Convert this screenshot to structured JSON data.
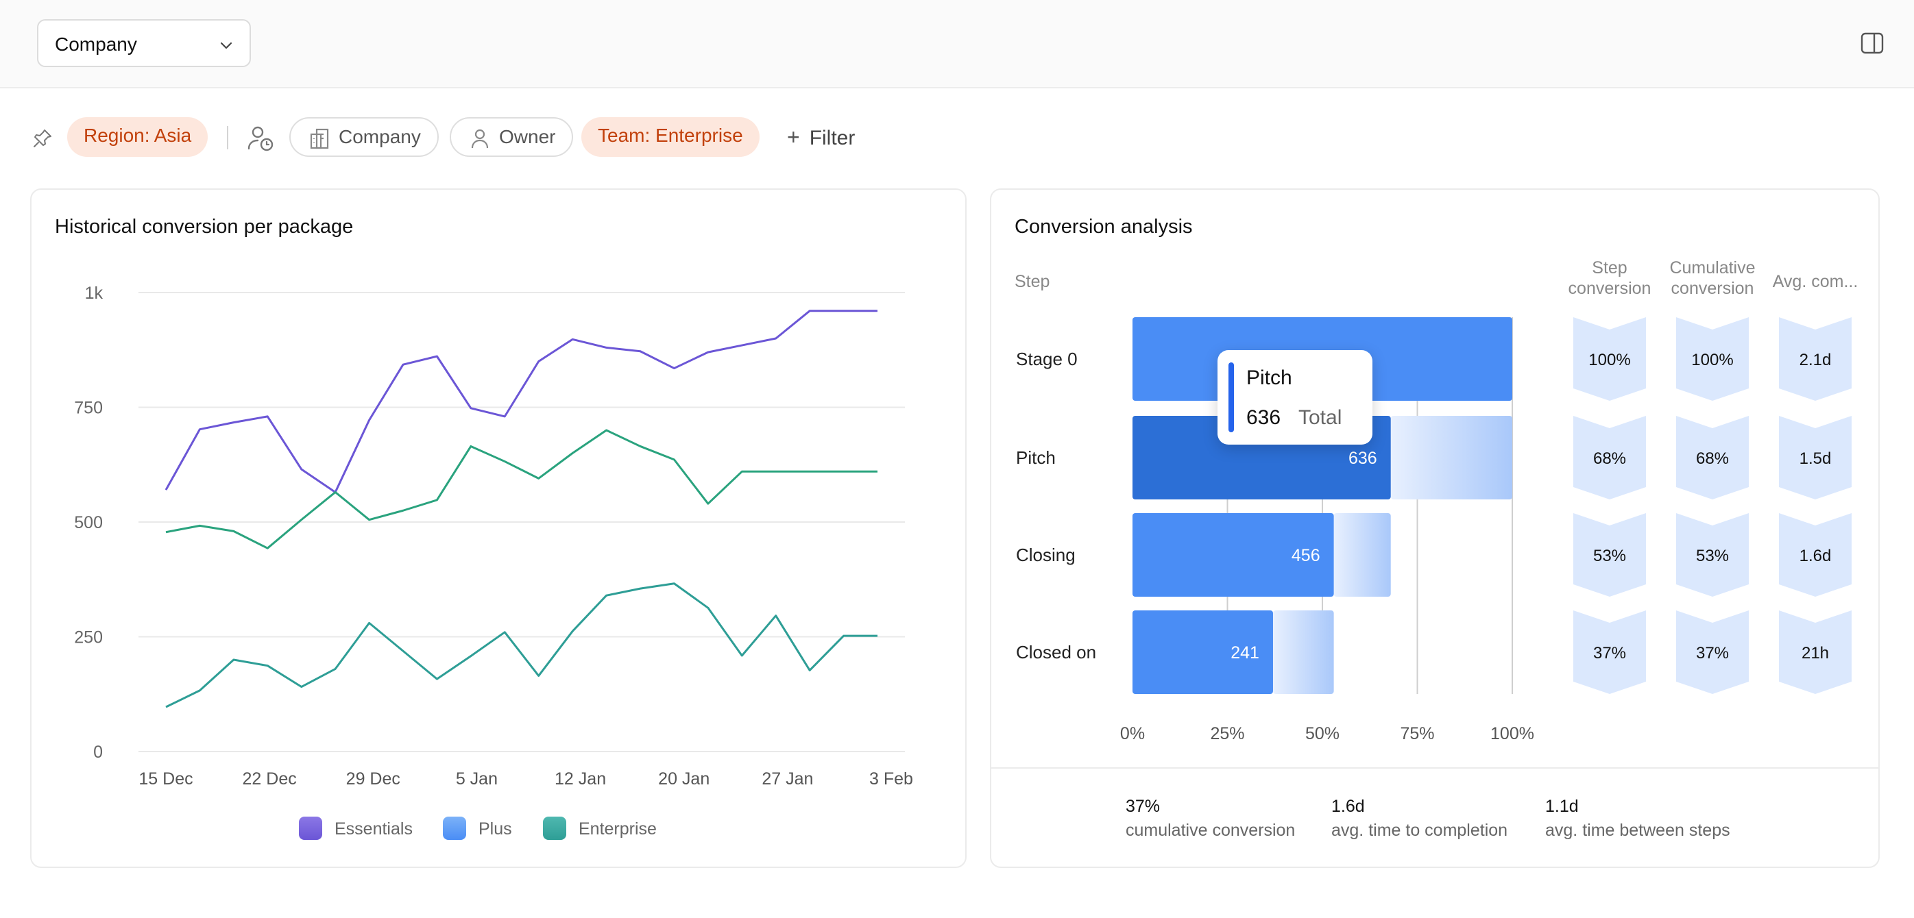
{
  "toolbar": {
    "company_select": "Company"
  },
  "filters": {
    "region": "Region:  Asia",
    "company": "Company",
    "owner": "Owner",
    "team": "Team:  Enterprise",
    "add_filter": "Filter"
  },
  "left_card": {
    "title": "Historical conversion per package"
  },
  "right_card": {
    "title": "Conversion analysis",
    "step_header": "Step",
    "col_headers": [
      "Step\nconversion",
      "Cumulative\nconversion",
      "Avg. com..."
    ],
    "tooltip": {
      "title": "Pitch",
      "value": "636",
      "label": "Total"
    },
    "summary": [
      {
        "value": "37%",
        "label": "cumulative conversion"
      },
      {
        "value": "1.6d",
        "label": "avg. time to completion"
      },
      {
        "value": "1.1d",
        "label": "avg. time between steps"
      }
    ]
  },
  "colors": {
    "essentials": "#6b56d6",
    "plus": "#5b9cf5",
    "enterprise": "#2e9e96",
    "enterprise_green": "#2aa37e",
    "bar": "#4a8df5",
    "bar_active": "#2c6fd6",
    "bar_ghost": "#a9c8fa",
    "badge_bg": "#dbe8fd"
  },
  "chart_data": [
    {
      "type": "line",
      "title": "Historical conversion per package",
      "x": [
        "15 Dec",
        "17 Dec",
        "20 Dec",
        "22 Dec",
        "25 Dec",
        "27 Dec",
        "29 Dec",
        "1 Jan",
        "3 Jan",
        "5 Jan",
        "7 Jan",
        "9 Jan",
        "12 Jan",
        "14 Jan",
        "17 Jan",
        "20 Jan",
        "22 Jan",
        "24 Jan",
        "27 Jan",
        "29 Jan",
        "1 Feb",
        "3 Feb"
      ],
      "x_tick_labels": [
        "15 Dec",
        "22 Dec",
        "29 Dec",
        "5 Jan",
        "12 Jan",
        "20 Jan",
        "27 Jan",
        "3 Feb"
      ],
      "y_tick_labels": [
        "0",
        "250",
        "500",
        "750",
        "1k"
      ],
      "ylim": [
        0,
        1000
      ],
      "grid": true,
      "legend": "bottom",
      "series": [
        {
          "name": "Essentials",
          "values": [
            570,
            702,
            717,
            730,
            615,
            565,
            722,
            843,
            861,
            748,
            730,
            850,
            898,
            880,
            872,
            835,
            870,
            885,
            900,
            960,
            960,
            960
          ]
        },
        {
          "name": "Plus",
          "values": [
            97,
            133,
            200,
            187,
            141,
            180,
            280,
            219,
            158,
            208,
            260,
            165,
            262,
            340,
            355,
            366,
            313,
            209,
            296,
            177,
            252,
            252
          ]
        },
        {
          "name": "Enterprise",
          "values": [
            478,
            492,
            480,
            443,
            505,
            565,
            505,
            525,
            548,
            665,
            632,
            595,
            650,
            700,
            665,
            636,
            540,
            610,
            610,
            610,
            610,
            610
          ]
        }
      ]
    },
    {
      "type": "bar",
      "title": "Conversion analysis",
      "categories": [
        "Stage 0",
        "Pitch",
        "Closing",
        "Closed on"
      ],
      "values": [
        null,
        636,
        456,
        241
      ],
      "percent_of_first": [
        100,
        68,
        53,
        37
      ],
      "x_tick_labels": [
        "0%",
        "25%",
        "50%",
        "75%",
        "100%"
      ],
      "xlim": [
        0,
        100
      ],
      "table": {
        "step_conversion": [
          "100%",
          "68%",
          "53%",
          "37%"
        ],
        "cumulative_conversion": [
          "100%",
          "68%",
          "53%",
          "37%"
        ],
        "avg_completion": [
          "2.1d",
          "1.5d",
          "1.6d",
          "21h"
        ]
      }
    }
  ]
}
